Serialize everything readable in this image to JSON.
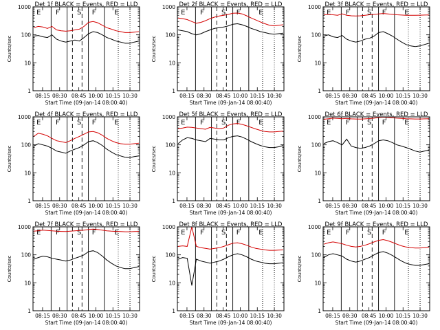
{
  "figure": {
    "ylabel": "Counts/sec",
    "xlabel": "Start Time (09-Jan-14 08:00:40)",
    "x_ticks": [
      "08:15",
      "08:30",
      "08:45",
      "10:00",
      "10:15",
      "10:30"
    ],
    "y_ticks": [
      "1",
      "10",
      "100",
      "1000"
    ],
    "event_letters": [
      "E",
      "F",
      "S",
      "F",
      "E"
    ],
    "colors": {
      "events": "#000000",
      "lld": "#d40000"
    }
  },
  "chart_data": [
    {
      "type": "line",
      "title": "Det 1f BLACK = Events, RED = LLD",
      "ylim": [
        1,
        1000
      ],
      "yscale": "log",
      "series": [
        {
          "color": "black",
          "values": [
            90,
            95,
            85,
            80,
            100,
            70,
            60,
            55,
            60,
            65,
            60,
            80,
            110,
            130,
            120,
            100,
            80,
            70,
            60,
            55,
            50,
            50,
            55,
            60
          ]
        },
        {
          "color": "red",
          "values": [
            180,
            200,
            190,
            170,
            200,
            150,
            140,
            135,
            140,
            150,
            160,
            200,
            280,
            300,
            270,
            220,
            180,
            160,
            140,
            130,
            120,
            120,
            125,
            130
          ]
        }
      ]
    },
    {
      "type": "line",
      "title": "Det 2f BLACK = Events, RED = LLD",
      "ylim": [
        1,
        1000
      ],
      "yscale": "log",
      "series": [
        {
          "color": "black",
          "values": [
            150,
            140,
            130,
            110,
            100,
            110,
            130,
            150,
            170,
            180,
            190,
            210,
            240,
            250,
            230,
            200,
            170,
            150,
            130,
            120,
            110,
            105,
            110,
            115
          ]
        },
        {
          "color": "red",
          "values": [
            400,
            380,
            350,
            300,
            260,
            280,
            320,
            380,
            430,
            470,
            500,
            540,
            590,
            600,
            560,
            480,
            400,
            340,
            290,
            250,
            220,
            210,
            220,
            230
          ]
        }
      ]
    },
    {
      "type": "line",
      "title": "Det 3f BLACK = Events, RED = LLD",
      "ylim": [
        1,
        1000
      ],
      "yscale": "log",
      "series": [
        {
          "color": "black",
          "values": [
            90,
            100,
            85,
            80,
            95,
            70,
            60,
            55,
            60,
            70,
            75,
            90,
            120,
            130,
            110,
            90,
            70,
            55,
            45,
            40,
            38,
            40,
            45,
            50
          ]
        },
        {
          "color": "red",
          "values": [
            520,
            540,
            520,
            500,
            560,
            500,
            480,
            470,
            480,
            500,
            520,
            540,
            560,
            580,
            560,
            540,
            520,
            510,
            500,
            500,
            500,
            505,
            510,
            515
          ]
        }
      ]
    },
    {
      "type": "line",
      "title": "Det 4f BLACK = Events, RED = LLD",
      "ylim": [
        1,
        1000
      ],
      "yscale": "log",
      "series": [
        {
          "color": "black",
          "values": [
            90,
            110,
            100,
            90,
            75,
            60,
            55,
            50,
            60,
            70,
            80,
            100,
            130,
            140,
            120,
            95,
            70,
            55,
            45,
            40,
            36,
            35,
            38,
            40
          ]
        },
        {
          "color": "red",
          "values": [
            200,
            260,
            240,
            210,
            170,
            140,
            130,
            120,
            140,
            170,
            200,
            240,
            290,
            300,
            270,
            220,
            170,
            140,
            120,
            110,
            105,
            105,
            110,
            115
          ]
        }
      ]
    },
    {
      "type": "line",
      "title": "Det 5f BLACK = Events, RED = LLD",
      "ylim": [
        1,
        1000
      ],
      "yscale": "log",
      "series": [
        {
          "color": "black",
          "values": [
            110,
            150,
            180,
            170,
            150,
            140,
            130,
            170,
            160,
            150,
            150,
            180,
            200,
            210,
            190,
            160,
            130,
            110,
            95,
            85,
            80,
            80,
            85,
            95
          ]
        },
        {
          "color": "red",
          "values": [
            380,
            400,
            430,
            420,
            400,
            380,
            360,
            420,
            400,
            380,
            400,
            500,
            560,
            580,
            540,
            480,
            420,
            370,
            330,
            300,
            290,
            290,
            300,
            310
          ]
        }
      ]
    },
    {
      "type": "line",
      "title": "Det 6f BLACK = Events, RED = LLD",
      "ylim": [
        1,
        1000
      ],
      "yscale": "log",
      "series": [
        {
          "color": "black",
          "values": [
            110,
            130,
            140,
            120,
            100,
            160,
            90,
            80,
            75,
            80,
            90,
            110,
            140,
            150,
            140,
            120,
            100,
            90,
            80,
            70,
            60,
            55,
            60,
            65
          ]
        },
        {
          "color": "red",
          "values": [
            820,
            860,
            900,
            880,
            860,
            880,
            850,
            840,
            830,
            850,
            870,
            900,
            950,
            980,
            960,
            930,
            900,
            880,
            860,
            850,
            840,
            840,
            850,
            860
          ]
        }
      ]
    },
    {
      "type": "line",
      "title": "Det 7f BLACK = Events, RED = LLD",
      "ylim": [
        1,
        1000
      ],
      "yscale": "log",
      "series": [
        {
          "color": "black",
          "values": [
            70,
            80,
            90,
            85,
            75,
            70,
            65,
            60,
            65,
            75,
            85,
            100,
            130,
            140,
            120,
            90,
            65,
            50,
            40,
            35,
            32,
            32,
            35,
            38
          ]
        },
        {
          "color": "red",
          "values": [
            700,
            730,
            760,
            740,
            720,
            700,
            690,
            680,
            700,
            720,
            740,
            760,
            800,
            830,
            800,
            760,
            720,
            700,
            690,
            680,
            670,
            670,
            680,
            690
          ]
        }
      ]
    },
    {
      "type": "line",
      "title": "Det 8f BLACK = Events, RED = LLD",
      "ylim": [
        1,
        1000
      ],
      "yscale": "log",
      "series": [
        {
          "color": "black",
          "values": [
            70,
            80,
            75,
            8,
            70,
            60,
            55,
            50,
            55,
            60,
            70,
            85,
            100,
            110,
            100,
            85,
            70,
            60,
            55,
            50,
            48,
            48,
            50,
            52
          ]
        },
        {
          "color": "red",
          "values": [
            200,
            210,
            200,
            1000,
            200,
            180,
            170,
            160,
            170,
            180,
            200,
            230,
            260,
            270,
            250,
            220,
            190,
            170,
            160,
            150,
            145,
            145,
            148,
            150
          ]
        }
      ]
    },
    {
      "type": "line",
      "title": "Det 9f BLACK = Events, RED = LLD",
      "ylim": [
        1,
        1000
      ],
      "yscale": "log",
      "series": [
        {
          "color": "black",
          "values": [
            80,
            100,
            110,
            100,
            90,
            70,
            60,
            55,
            60,
            70,
            80,
            100,
            120,
            130,
            115,
            95,
            75,
            60,
            50,
            45,
            42,
            42,
            45,
            48
          ]
        },
        {
          "color": "red",
          "values": [
            240,
            270,
            290,
            270,
            250,
            220,
            200,
            190,
            200,
            220,
            250,
            290,
            330,
            350,
            320,
            280,
            240,
            210,
            190,
            180,
            175,
            175,
            180,
            185
          ]
        }
      ]
    }
  ]
}
